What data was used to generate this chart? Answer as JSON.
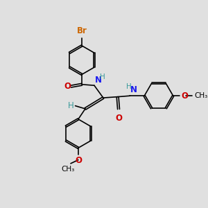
{
  "bg_color": "#e0e0e0",
  "bond_color": "#000000",
  "bond_width": 1.2,
  "colors": {
    "C": "#000000",
    "N": "#1a1aee",
    "O": "#cc0000",
    "Br": "#cc6600",
    "H": "#3a9a9a"
  },
  "font_size": 8.5,
  "font_size_small": 7.5,
  "ring_r": 0.72,
  "dbo": 0.055
}
